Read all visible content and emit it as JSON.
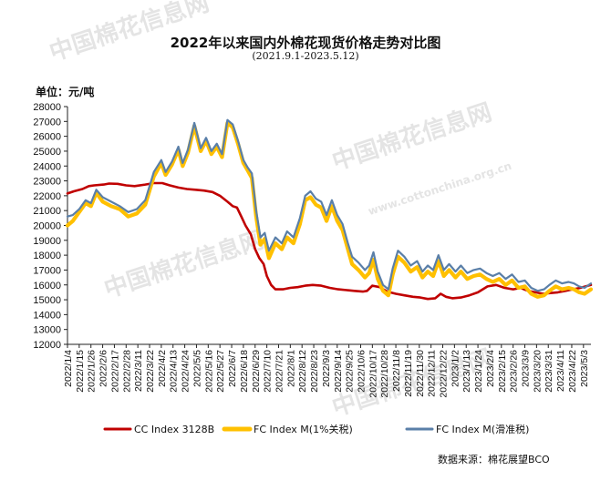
{
  "title": "2022年以来国内外棉花现货价格走势对比图",
  "subtitle": "(2021.9.1-2023.5.12)",
  "unit_label": "单位：元/吨",
  "source": "数据来源：棉花展望BCO",
  "watermarks": [
    "中国棉花信息网",
    "www.cottonchina.org.cn"
  ],
  "colors": {
    "cc": "#c00000",
    "fc1": "#ffc000",
    "fc2": "#5a7fa8"
  },
  "chart_data": {
    "type": "line",
    "ylim": [
      12000,
      28000
    ],
    "yticks": [
      12000,
      13000,
      14000,
      15000,
      16000,
      17000,
      18000,
      19000,
      20000,
      21000,
      22000,
      23000,
      24000,
      25000,
      26000,
      27000,
      28000
    ],
    "xlim": [
      "2022-01-04",
      "2023-05-10"
    ],
    "xticks": [
      "2022/1/4",
      "2022/1/15",
      "2022/1/26",
      "2022/2/6",
      "2022/2/17",
      "2022/2/28",
      "2022/3/11",
      "2022/3/22",
      "2022/4/2",
      "2022/4/13",
      "2022/4/24",
      "2022/5/5",
      "2022/5/16",
      "2022/5/27",
      "2022/6/7",
      "2022/6/18",
      "2022/6/29",
      "2022/7/10",
      "2022/7/21",
      "2022/8/1",
      "2022/8/12",
      "2022/8/23",
      "2022/9/3",
      "2022/9/14",
      "2022/9/25",
      "2022/10/6",
      "2022/10/17",
      "2022/10/28",
      "2022/11/8",
      "2022/11/19",
      "2022/11/30",
      "2022/12/11",
      "2022/12/22",
      "2023/1/2",
      "2023/1/13",
      "2023/1/24",
      "2023/2/4",
      "2023/2/15",
      "2023/2/26",
      "2023/3/9",
      "2023/3/20",
      "2023/3/31",
      "2023/4/11",
      "2023/4/22",
      "2023/5/3"
    ],
    "series": [
      {
        "name": "CC Index 3128B",
        "color": "#c00000",
        "points": [
          [
            "2022-01-04",
            22150
          ],
          [
            "2022-01-10",
            22300
          ],
          [
            "2022-01-18",
            22450
          ],
          [
            "2022-01-24",
            22650
          ],
          [
            "2022-01-29",
            22700
          ],
          [
            "2022-02-07",
            22750
          ],
          [
            "2022-02-12",
            22820
          ],
          [
            "2022-02-20",
            22800
          ],
          [
            "2022-02-28",
            22700
          ],
          [
            "2022-03-08",
            22650
          ],
          [
            "2022-03-18",
            22750
          ],
          [
            "2022-03-26",
            22850
          ],
          [
            "2022-04-03",
            22850
          ],
          [
            "2022-04-10",
            22700
          ],
          [
            "2022-04-18",
            22550
          ],
          [
            "2022-04-26",
            22450
          ],
          [
            "2022-05-04",
            22400
          ],
          [
            "2022-05-12",
            22350
          ],
          [
            "2022-05-20",
            22250
          ],
          [
            "2022-05-27",
            22000
          ],
          [
            "2022-06-03",
            21600
          ],
          [
            "2022-06-08",
            21300
          ],
          [
            "2022-06-12",
            21200
          ],
          [
            "2022-06-16",
            20600
          ],
          [
            "2022-06-20",
            20000
          ],
          [
            "2022-06-25",
            19400
          ],
          [
            "2022-06-29",
            18400
          ],
          [
            "2022-07-03",
            17800
          ],
          [
            "2022-07-07",
            17400
          ],
          [
            "2022-07-10",
            16600
          ],
          [
            "2022-07-14",
            16000
          ],
          [
            "2022-07-18",
            15700
          ],
          [
            "2022-07-25",
            15700
          ],
          [
            "2022-08-01",
            15800
          ],
          [
            "2022-08-08",
            15850
          ],
          [
            "2022-08-15",
            15950
          ],
          [
            "2022-08-22",
            16000
          ],
          [
            "2022-08-30",
            15950
          ],
          [
            "2022-09-07",
            15800
          ],
          [
            "2022-09-15",
            15700
          ],
          [
            "2022-09-23",
            15650
          ],
          [
            "2022-09-30",
            15600
          ],
          [
            "2022-10-08",
            15550
          ],
          [
            "2022-10-12",
            15600
          ],
          [
            "2022-10-17",
            15950
          ],
          [
            "2022-10-24",
            15850
          ],
          [
            "2022-10-31",
            15550
          ],
          [
            "2022-11-08",
            15400
          ],
          [
            "2022-11-16",
            15300
          ],
          [
            "2022-11-24",
            15200
          ],
          [
            "2022-12-01",
            15150
          ],
          [
            "2022-12-08",
            15050
          ],
          [
            "2022-12-15",
            15100
          ],
          [
            "2022-12-20",
            15400
          ],
          [
            "2022-12-25",
            15200
          ],
          [
            "2022-12-31",
            15100
          ],
          [
            "2023-01-08",
            15150
          ],
          [
            "2023-01-16",
            15300
          ],
          [
            "2023-01-24",
            15500
          ],
          [
            "2023-02-02",
            15900
          ],
          [
            "2023-02-10",
            16000
          ],
          [
            "2023-02-18",
            15800
          ],
          [
            "2023-02-26",
            15700
          ],
          [
            "2023-03-05",
            15800
          ],
          [
            "2023-03-12",
            15600
          ],
          [
            "2023-03-19",
            15500
          ],
          [
            "2023-03-26",
            15400
          ],
          [
            "2023-04-02",
            15450
          ],
          [
            "2023-04-09",
            15500
          ],
          [
            "2023-04-16",
            15600
          ],
          [
            "2023-04-23",
            15700
          ],
          [
            "2023-04-30",
            15800
          ],
          [
            "2023-05-05",
            15900
          ],
          [
            "2023-05-10",
            16000
          ]
        ]
      },
      {
        "name": "FC Index M(1%关税)",
        "color": "#ffc000",
        "points": [
          [
            "2022-01-04",
            20000
          ],
          [
            "2022-01-09",
            20300
          ],
          [
            "2022-01-15",
            20900
          ],
          [
            "2022-01-21",
            21500
          ],
          [
            "2022-01-26",
            21300
          ],
          [
            "2022-01-31",
            22200
          ],
          [
            "2022-02-06",
            21600
          ],
          [
            "2022-02-14",
            21300
          ],
          [
            "2022-02-22",
            21100
          ],
          [
            "2022-03-02",
            20600
          ],
          [
            "2022-03-10",
            20800
          ],
          [
            "2022-03-18",
            21400
          ],
          [
            "2022-03-26",
            23300
          ],
          [
            "2022-04-02",
            24200
          ],
          [
            "2022-04-06",
            23400
          ],
          [
            "2022-04-12",
            24100
          ],
          [
            "2022-04-18",
            25100
          ],
          [
            "2022-04-22",
            24000
          ],
          [
            "2022-04-27",
            24900
          ],
          [
            "2022-05-03",
            26700
          ],
          [
            "2022-05-09",
            25000
          ],
          [
            "2022-05-14",
            25700
          ],
          [
            "2022-05-19",
            24800
          ],
          [
            "2022-05-24",
            25300
          ],
          [
            "2022-05-29",
            24600
          ],
          [
            "2022-06-03",
            26900
          ],
          [
            "2022-06-08",
            26600
          ],
          [
            "2022-06-13",
            25500
          ],
          [
            "2022-06-18",
            24200
          ],
          [
            "2022-06-22",
            23700
          ],
          [
            "2022-06-26",
            23200
          ],
          [
            "2022-06-30",
            20600
          ],
          [
            "2022-07-04",
            18700
          ],
          [
            "2022-07-08",
            19100
          ],
          [
            "2022-07-12",
            17800
          ],
          [
            "2022-07-18",
            18800
          ],
          [
            "2022-07-24",
            18400
          ],
          [
            "2022-07-29",
            19200
          ],
          [
            "2022-08-04",
            18800
          ],
          [
            "2022-08-10",
            20100
          ],
          [
            "2022-08-15",
            21700
          ],
          [
            "2022-08-20",
            21900
          ],
          [
            "2022-08-25",
            21400
          ],
          [
            "2022-08-30",
            21200
          ],
          [
            "2022-09-04",
            20300
          ],
          [
            "2022-09-09",
            21300
          ],
          [
            "2022-09-14",
            20300
          ],
          [
            "2022-09-19",
            19700
          ],
          [
            "2022-09-24",
            18400
          ],
          [
            "2022-09-28",
            17400
          ],
          [
            "2022-10-04",
            17000
          ],
          [
            "2022-10-10",
            16500
          ],
          [
            "2022-10-14",
            16800
          ],
          [
            "2022-10-18",
            17700
          ],
          [
            "2022-10-22",
            16400
          ],
          [
            "2022-10-27",
            15600
          ],
          [
            "2022-11-01",
            15300
          ],
          [
            "2022-11-05",
            16700
          ],
          [
            "2022-11-10",
            17900
          ],
          [
            "2022-11-16",
            17500
          ],
          [
            "2022-11-22",
            16900
          ],
          [
            "2022-11-28",
            17200
          ],
          [
            "2022-12-03",
            16500
          ],
          [
            "2022-12-08",
            16900
          ],
          [
            "2022-12-13",
            16600
          ],
          [
            "2022-12-18",
            17600
          ],
          [
            "2022-12-23",
            16600
          ],
          [
            "2022-12-28",
            17000
          ],
          [
            "2023-01-03",
            16500
          ],
          [
            "2023-01-08",
            16900
          ],
          [
            "2023-01-14",
            16400
          ],
          [
            "2023-01-20",
            16600
          ],
          [
            "2023-01-26",
            16700
          ],
          [
            "2023-02-01",
            16400
          ],
          [
            "2023-02-07",
            16200
          ],
          [
            "2023-02-13",
            16400
          ],
          [
            "2023-02-19",
            16000
          ],
          [
            "2023-02-25",
            16300
          ],
          [
            "2023-03-03",
            15800
          ],
          [
            "2023-03-09",
            15900
          ],
          [
            "2023-03-15",
            15400
          ],
          [
            "2023-03-21",
            15200
          ],
          [
            "2023-03-27",
            15300
          ],
          [
            "2023-04-01",
            15600
          ],
          [
            "2023-04-07",
            15900
          ],
          [
            "2023-04-13",
            15700
          ],
          [
            "2023-04-19",
            15800
          ],
          [
            "2023-04-24",
            15700
          ],
          [
            "2023-04-29",
            15500
          ],
          [
            "2023-05-04",
            15400
          ],
          [
            "2023-05-10",
            15700
          ]
        ]
      },
      {
        "name": "FC Index M(滑准税)",
        "color": "#5a7fa8",
        "points": [
          [
            "2022-01-04",
            20600
          ],
          [
            "2022-01-09",
            20700
          ],
          [
            "2022-01-15",
            21100
          ],
          [
            "2022-01-21",
            21700
          ],
          [
            "2022-01-26",
            21500
          ],
          [
            "2022-01-31",
            22400
          ],
          [
            "2022-02-06",
            21900
          ],
          [
            "2022-02-14",
            21600
          ],
          [
            "2022-02-22",
            21300
          ],
          [
            "2022-03-02",
            20900
          ],
          [
            "2022-03-10",
            21100
          ],
          [
            "2022-03-18",
            21700
          ],
          [
            "2022-03-26",
            23600
          ],
          [
            "2022-04-02",
            24400
          ],
          [
            "2022-04-06",
            23600
          ],
          [
            "2022-04-12",
            24300
          ],
          [
            "2022-04-18",
            25300
          ],
          [
            "2022-04-22",
            24200
          ],
          [
            "2022-04-27",
            25100
          ],
          [
            "2022-05-03",
            26900
          ],
          [
            "2022-05-09",
            25200
          ],
          [
            "2022-05-14",
            25900
          ],
          [
            "2022-05-19",
            25000
          ],
          [
            "2022-05-24",
            25500
          ],
          [
            "2022-05-29",
            24800
          ],
          [
            "2022-06-03",
            27100
          ],
          [
            "2022-06-08",
            26800
          ],
          [
            "2022-06-13",
            25700
          ],
          [
            "2022-06-18",
            24400
          ],
          [
            "2022-06-22",
            23900
          ],
          [
            "2022-06-26",
            23500
          ],
          [
            "2022-06-30",
            21000
          ],
          [
            "2022-07-04",
            19200
          ],
          [
            "2022-07-08",
            19500
          ],
          [
            "2022-07-12",
            18300
          ],
          [
            "2022-07-18",
            19200
          ],
          [
            "2022-07-24",
            18800
          ],
          [
            "2022-07-29",
            19600
          ],
          [
            "2022-08-04",
            19200
          ],
          [
            "2022-08-10",
            20500
          ],
          [
            "2022-08-15",
            22000
          ],
          [
            "2022-08-20",
            22300
          ],
          [
            "2022-08-25",
            21800
          ],
          [
            "2022-08-30",
            21600
          ],
          [
            "2022-09-04",
            20700
          ],
          [
            "2022-09-09",
            21700
          ],
          [
            "2022-09-14",
            20700
          ],
          [
            "2022-09-19",
            20100
          ],
          [
            "2022-09-24",
            18800
          ],
          [
            "2022-09-28",
            17900
          ],
          [
            "2022-10-04",
            17500
          ],
          [
            "2022-10-10",
            17000
          ],
          [
            "2022-10-14",
            17300
          ],
          [
            "2022-10-18",
            18200
          ],
          [
            "2022-10-22",
            16900
          ],
          [
            "2022-10-27",
            16000
          ],
          [
            "2022-11-01",
            15700
          ],
          [
            "2022-11-05",
            17100
          ],
          [
            "2022-11-10",
            18300
          ],
          [
            "2022-11-16",
            17900
          ],
          [
            "2022-11-22",
            17300
          ],
          [
            "2022-11-28",
            17600
          ],
          [
            "2022-12-03",
            16900
          ],
          [
            "2022-12-08",
            17300
          ],
          [
            "2022-12-13",
            17000
          ],
          [
            "2022-12-18",
            18000
          ],
          [
            "2022-12-23",
            17000
          ],
          [
            "2022-12-28",
            17400
          ],
          [
            "2023-01-03",
            16900
          ],
          [
            "2023-01-08",
            17300
          ],
          [
            "2023-01-14",
            16800
          ],
          [
            "2023-01-20",
            17000
          ],
          [
            "2023-01-26",
            17100
          ],
          [
            "2023-02-01",
            16800
          ],
          [
            "2023-02-07",
            16600
          ],
          [
            "2023-02-13",
            16800
          ],
          [
            "2023-02-19",
            16400
          ],
          [
            "2023-02-25",
            16700
          ],
          [
            "2023-03-03",
            16200
          ],
          [
            "2023-03-09",
            16300
          ],
          [
            "2023-03-15",
            15800
          ],
          [
            "2023-03-21",
            15600
          ],
          [
            "2023-03-27",
            15700
          ],
          [
            "2023-04-01",
            16000
          ],
          [
            "2023-04-07",
            16300
          ],
          [
            "2023-04-13",
            16100
          ],
          [
            "2023-04-19",
            16200
          ],
          [
            "2023-04-24",
            16100
          ],
          [
            "2023-04-29",
            15900
          ],
          [
            "2023-05-04",
            15800
          ],
          [
            "2023-05-10",
            16100
          ]
        ]
      }
    ]
  }
}
